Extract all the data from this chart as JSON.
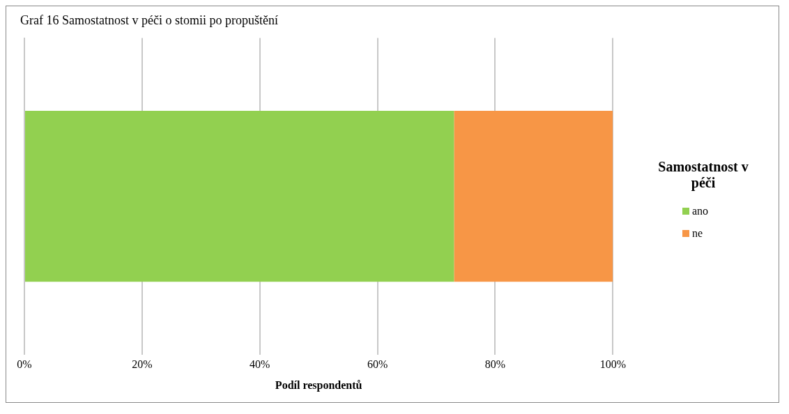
{
  "chart_data": {
    "type": "bar",
    "orientation": "horizontal",
    "stacked": true,
    "title": "Graf 16 Samostatnost v péči o stomii po propuštění",
    "xlabel": "Podíl respondentů",
    "legend_title": "Samostatnost v péči",
    "legend": "right",
    "grid": "x",
    "categories": [
      null
    ],
    "series": [
      {
        "name": "ano",
        "color": "#92d050",
        "values": [
          73
        ]
      },
      {
        "name": "ne",
        "color": "#f79646",
        "values": [
          27
        ]
      }
    ],
    "xlim": [
      0,
      100
    ],
    "xticks": [
      {
        "value": 0,
        "label": "0%"
      },
      {
        "value": 20,
        "label": "20%"
      },
      {
        "value": 40,
        "label": "40%"
      },
      {
        "value": 60,
        "label": "60%"
      },
      {
        "value": 80,
        "label": "80%"
      },
      {
        "value": 100,
        "label": "100%"
      }
    ]
  }
}
